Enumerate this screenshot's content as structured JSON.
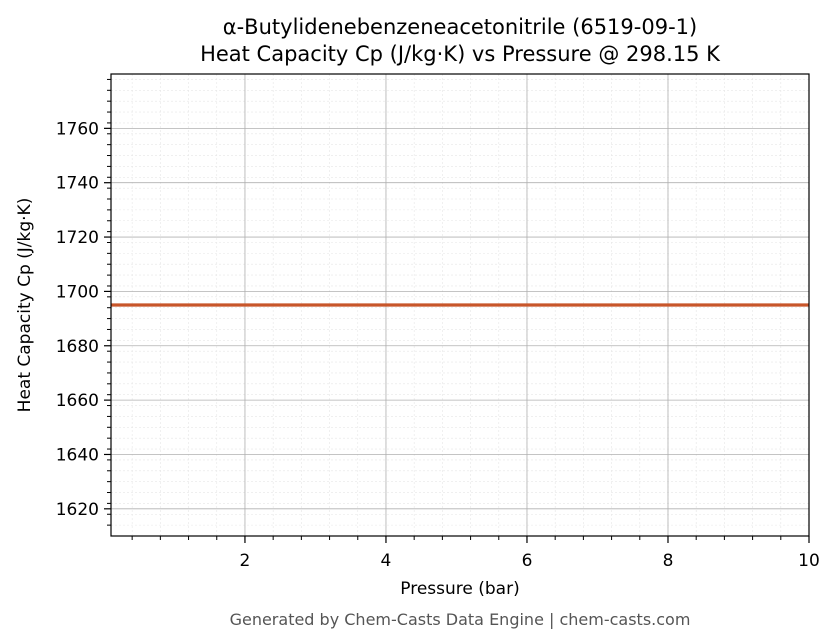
{
  "chart_data": {
    "type": "line",
    "title": "α-Butylidenebenzeneacetonitrile (6519-09-1)",
    "subtitle": "Heat Capacity Cp (J/kg·K) vs Pressure @ 298.15 K",
    "xlabel": "Pressure (bar)",
    "ylabel": "Heat Capacity Cp (J/kg·K)",
    "xlim": [
      0.1,
      10
    ],
    "ylim": [
      1610,
      1780
    ],
    "x_ticks": [
      2,
      4,
      6,
      8,
      10
    ],
    "y_ticks": [
      1620,
      1640,
      1660,
      1680,
      1700,
      1720,
      1740,
      1760
    ],
    "x_minor_step": 0.4,
    "y_minor_step": 4,
    "grid": true,
    "series": [
      {
        "color": "#c8562a",
        "x": [
          0.1,
          1,
          2,
          3,
          4,
          5,
          6,
          7,
          8,
          9,
          10
        ],
        "y": [
          1695,
          1695,
          1695,
          1695,
          1695,
          1695,
          1695,
          1695,
          1695,
          1695,
          1695
        ]
      }
    ]
  },
  "footer": "Generated by Chem-Casts Data Engine | chem-casts.com",
  "colors": {
    "line": "#c8562a",
    "major_grid": "#b0b0b0",
    "minor_grid": "#e6e6e6",
    "footer": "#555555"
  }
}
